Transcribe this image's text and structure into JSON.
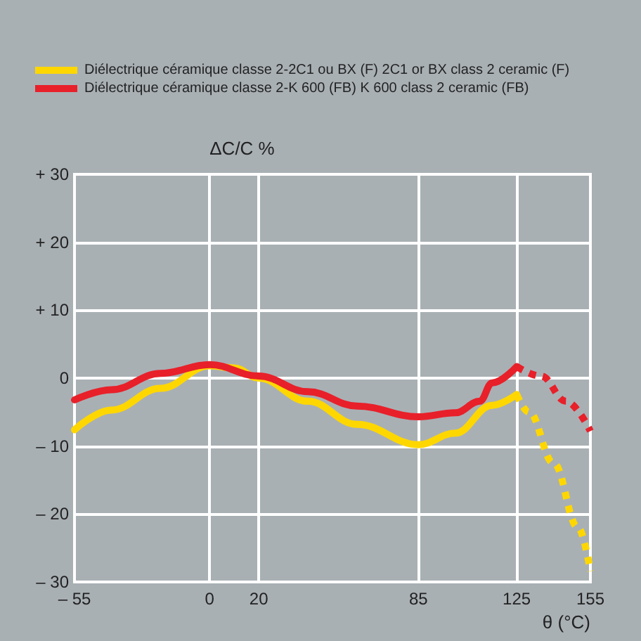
{
  "chart_data": {
    "type": "line",
    "xlabel": "θ (°C)",
    "ylabel": "ΔC/C %",
    "series": [
      {
        "name": "Diélectrique céramique classe 2-2C1 ou BX (F) 2C1 or BX class 2 ceramic (F)",
        "color": "#ffd700",
        "line_style": "solid",
        "x": [
          -55,
          -40,
          -20,
          0,
          10,
          20,
          40,
          60,
          85,
          100,
          115,
          125
        ],
        "values": [
          -7.6,
          -4.7,
          -1.5,
          1.8,
          1.5,
          0,
          -3.4,
          -6.8,
          -9.8,
          -8.1,
          -4,
          -2.4
        ]
      },
      {
        "name": "Diélectrique céramique classe 2-K 600 (FB) K 600 class 2 ceramic (FB)",
        "color": "#e8202a",
        "line_style": "solid",
        "x": [
          -55,
          -40,
          -20,
          0,
          20,
          40,
          60,
          85,
          100,
          110,
          115,
          125
        ],
        "values": [
          -3.2,
          -1.7,
          0.7,
          2.0,
          0.3,
          -2,
          -4.1,
          -5.7,
          -5.1,
          -3.4,
          -0.7,
          1.7
        ]
      },
      {
        "color": "#ffd700",
        "line_style": "dotted",
        "x": [
          125,
          130,
          140,
          150,
          155
        ],
        "values": [
          -2.4,
          -5,
          -12.5,
          -22,
          -28.4
        ]
      },
      {
        "color": "#e8202a",
        "line_style": "dotted",
        "x": [
          125,
          135,
          145,
          155
        ],
        "values": [
          1.7,
          0.3,
          -3.4,
          -7.8
        ]
      }
    ],
    "xlim": [
      -55,
      155
    ],
    "xticks": [
      {
        "value": -55,
        "label": "– 55"
      },
      0,
      20,
      85,
      125,
      155
    ],
    "ylim": [
      -30,
      30
    ],
    "yticks": [
      {
        "value": -30,
        "label": "– 30"
      },
      {
        "value": -20,
        "label": "– 20"
      },
      {
        "value": -10,
        "label": "– 10"
      },
      0,
      {
        "value": 10,
        "label": "+ 10"
      },
      {
        "value": 20,
        "label": "+ 20"
      },
      {
        "value": 30,
        "label": "+ 30"
      }
    ],
    "grid": true,
    "legend": "top left",
    "marker": "none"
  }
}
